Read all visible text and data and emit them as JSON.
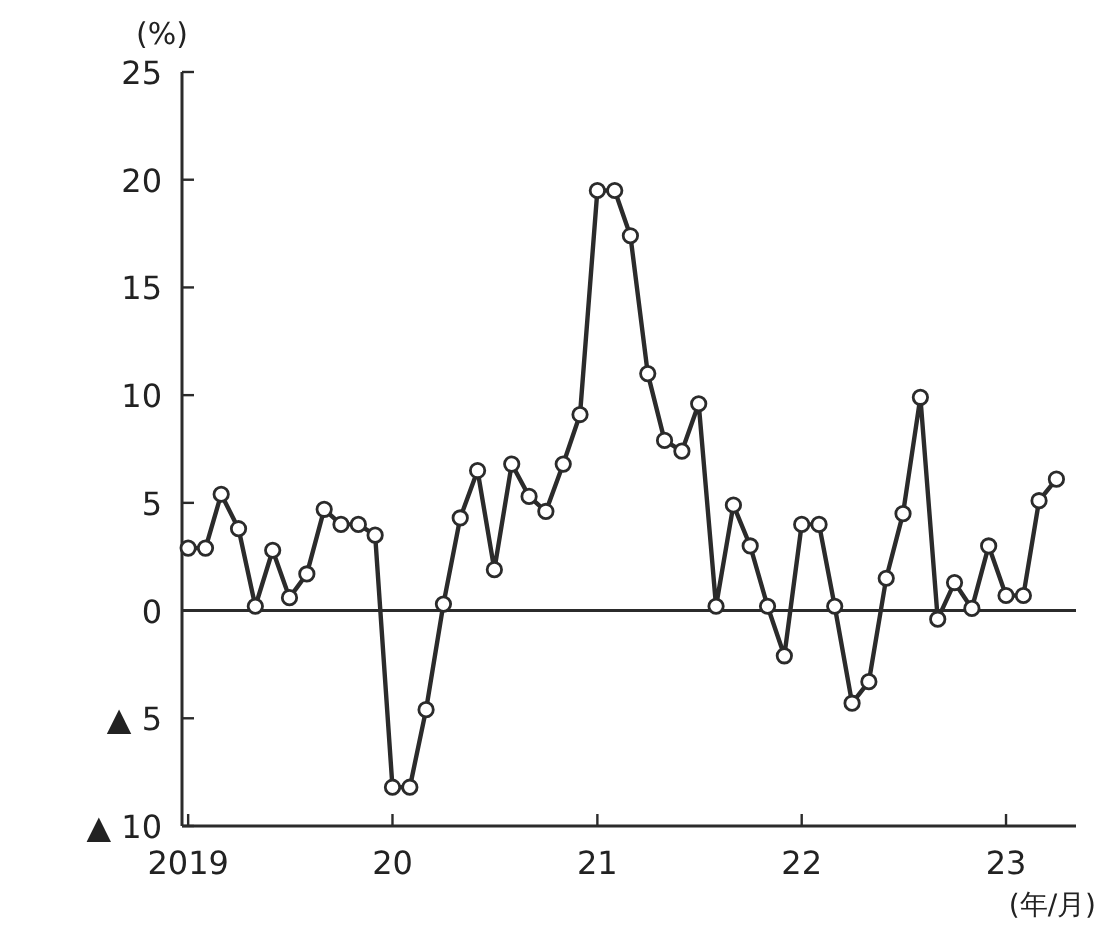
{
  "chart_data": {
    "type": "line",
    "ylabel": "(%)",
    "xlabel": "(年/月)",
    "x": [
      "2019-01",
      "2019-02",
      "2019-03",
      "2019-04",
      "2019-05",
      "2019-06",
      "2019-07",
      "2019-08",
      "2019-09",
      "2019-10",
      "2019-11",
      "2019-12",
      "2020-01",
      "2020-02",
      "2020-03",
      "2020-04",
      "2020-05",
      "2020-06",
      "2020-07",
      "2020-08",
      "2020-09",
      "2020-10",
      "2020-11",
      "2020-12",
      "2021-01",
      "2021-02",
      "2021-03",
      "2021-04",
      "2021-05",
      "2021-06",
      "2021-07",
      "2021-08",
      "2021-09",
      "2021-10",
      "2021-11",
      "2021-12",
      "2022-01",
      "2022-02",
      "2022-03",
      "2022-04",
      "2022-05",
      "2022-06",
      "2022-07",
      "2022-08",
      "2022-09",
      "2022-10",
      "2022-11",
      "2022-12",
      "2023-01",
      "2023-02",
      "2023-03",
      "2023-04"
    ],
    "series": [
      {
        "color": "#2b2b2b",
        "values": [
          2.9,
          2.9,
          5.4,
          3.8,
          0.2,
          2.8,
          0.6,
          1.7,
          4.7,
          4.0,
          4.0,
          3.5,
          -8.2,
          -8.2,
          -4.6,
          0.3,
          4.3,
          6.5,
          1.9,
          6.8,
          5.3,
          4.6,
          6.8,
          9.1,
          19.5,
          19.5,
          17.4,
          11.0,
          7.9,
          7.4,
          9.6,
          0.2,
          4.9,
          3.0,
          0.2,
          -2.1,
          4.0,
          4.0,
          0.2,
          -4.3,
          -3.3,
          1.5,
          4.5,
          9.9,
          -0.4,
          1.3,
          0.1,
          3.0,
          0.7,
          0.7,
          5.1,
          6.1
        ]
      }
    ],
    "marker": "circle",
    "line_style": "solid",
    "xlim": [
      "2018-12-21",
      "2023-05-06"
    ],
    "xticks": [
      {
        "value": "2019-01",
        "label": "2019"
      },
      {
        "value": "2020-01",
        "label": "20"
      },
      {
        "value": "2021-01",
        "label": "21"
      },
      {
        "value": "2022-01",
        "label": "22"
      },
      {
        "value": "2023-01",
        "label": "23"
      }
    ],
    "ylim": [
      -10,
      25
    ],
    "yticks": [
      {
        "value": -10,
        "label": "▲ 10"
      },
      {
        "value": -5,
        "label": "▲ 5"
      },
      0,
      5,
      10,
      15,
      20,
      25
    ],
    "ref_lines": [
      {
        "axis": "y",
        "value": 0,
        "color": "#2b2b2b",
        "line_style": "solid"
      }
    ]
  }
}
